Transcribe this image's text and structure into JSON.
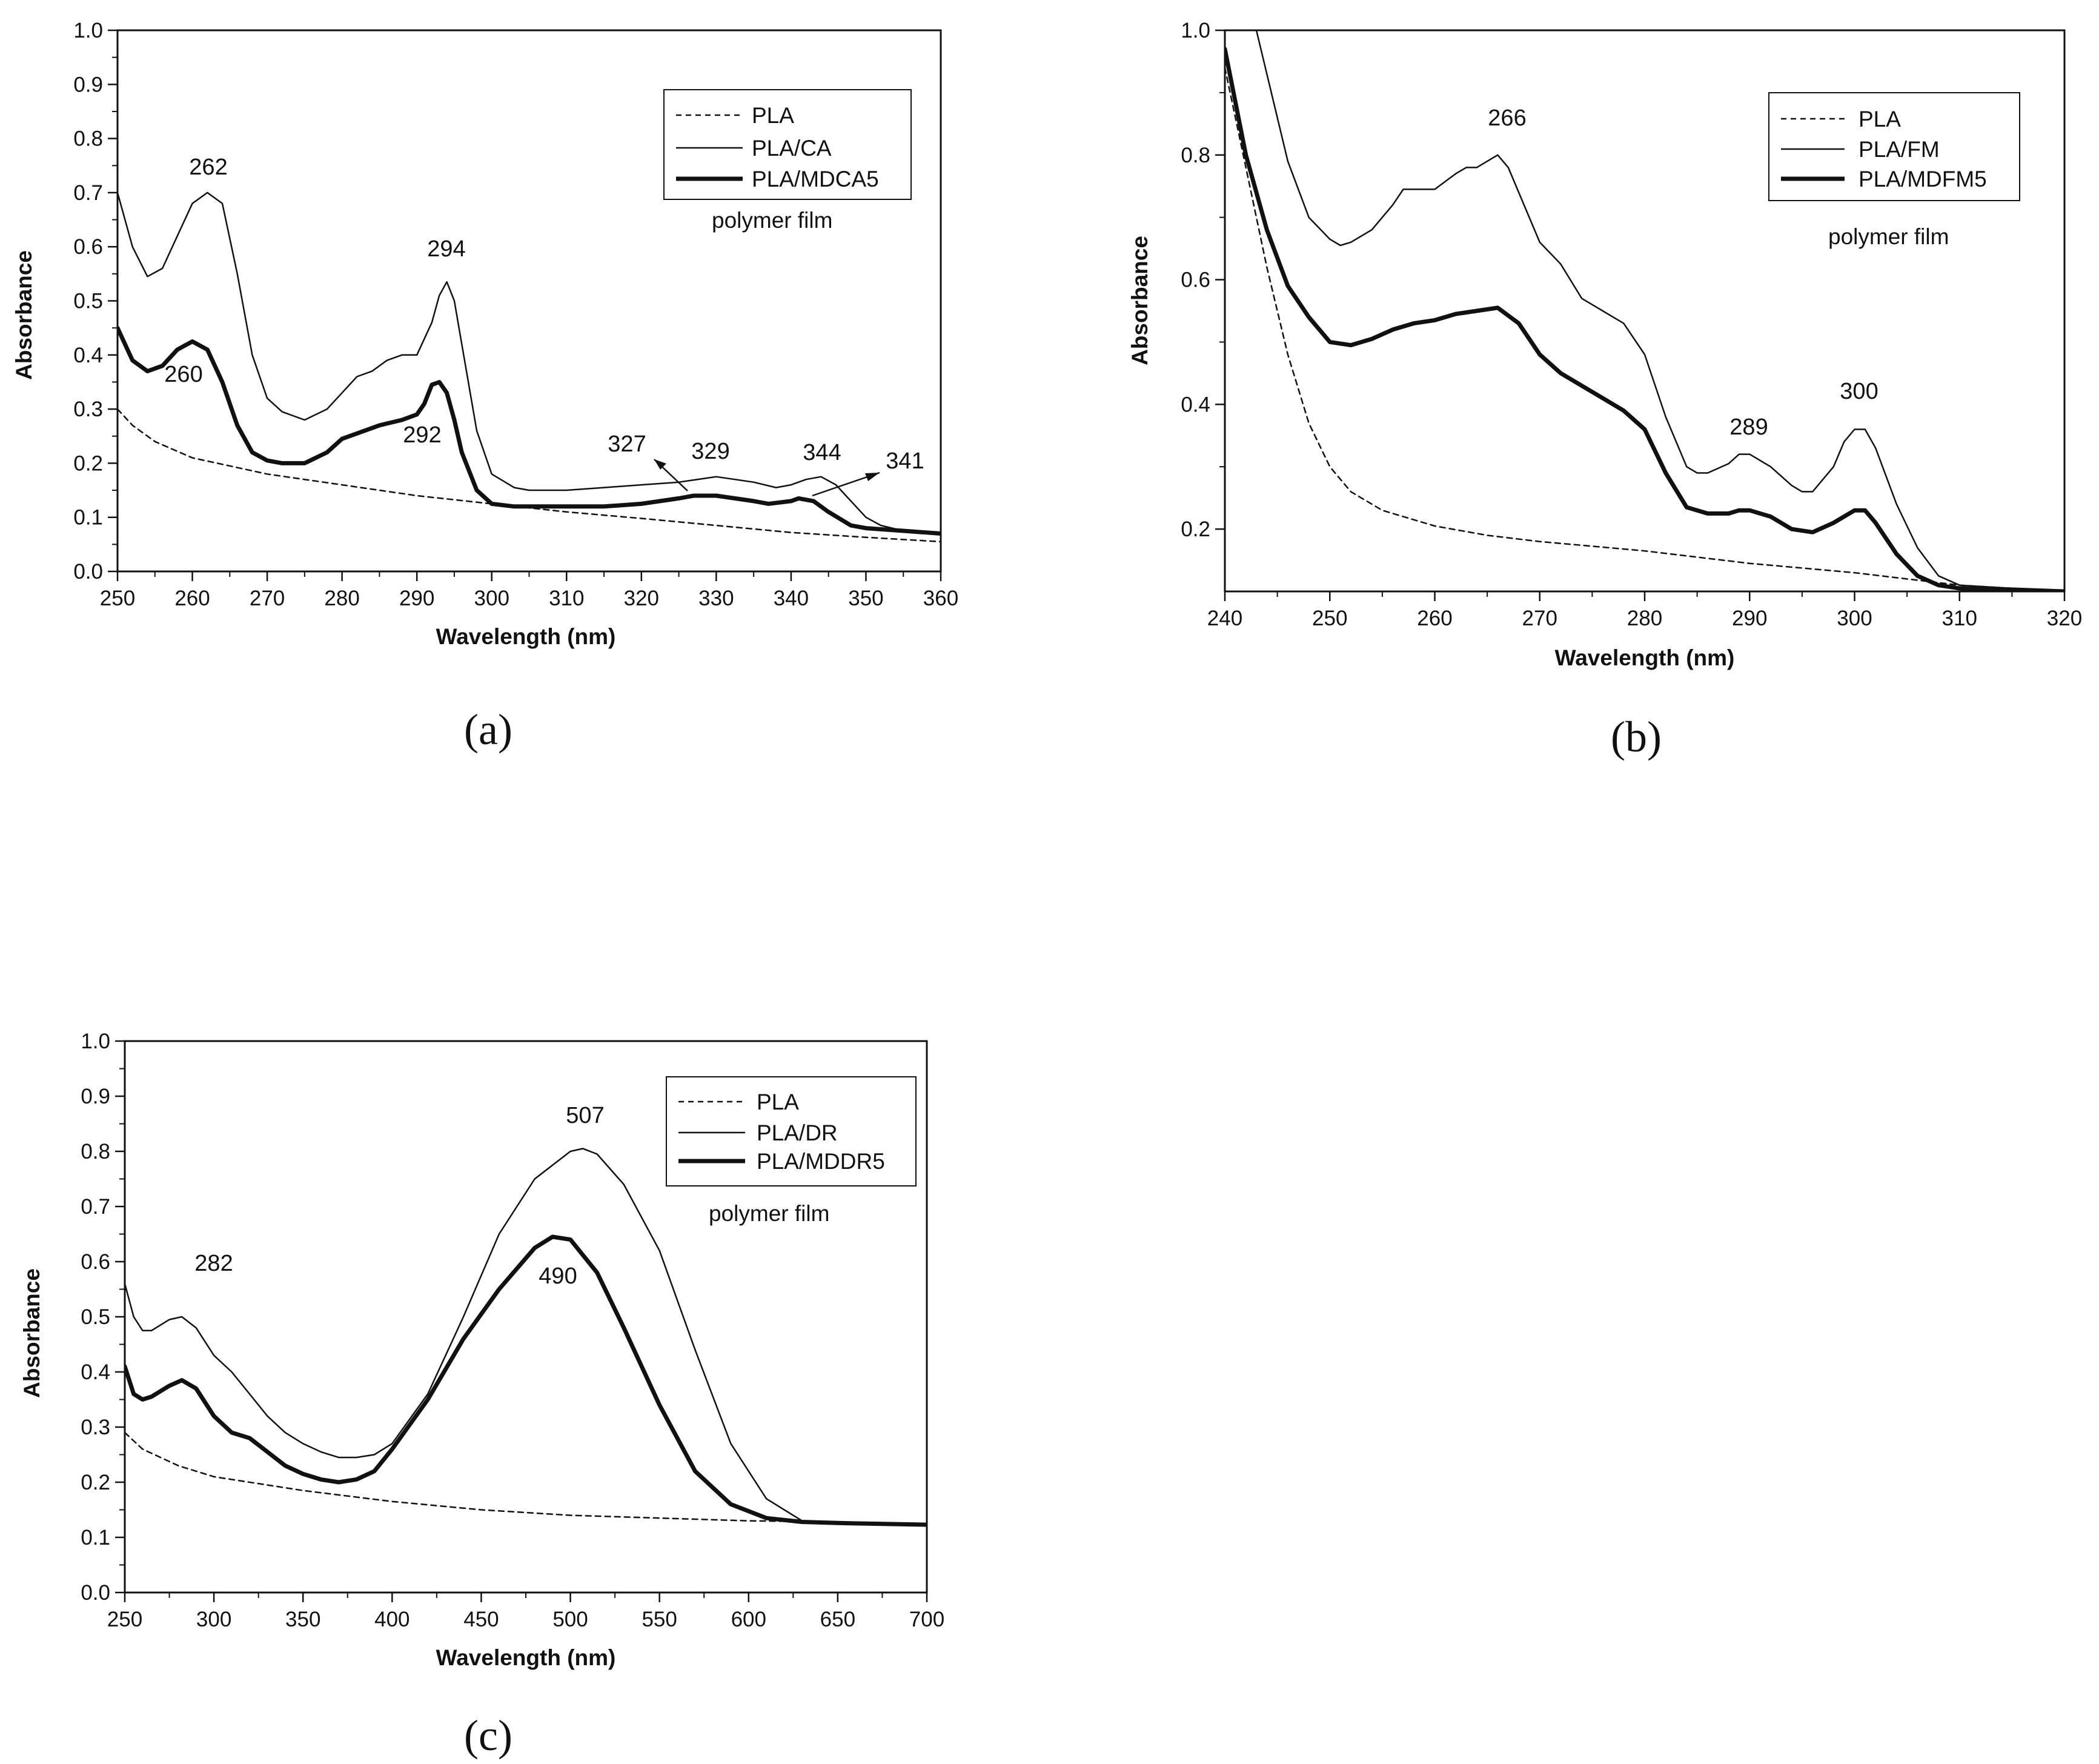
{
  "figure": {
    "panel_labels": [
      "(a)",
      "(b)",
      "(c)"
    ]
  },
  "chart_data": [
    {
      "type": "line",
      "panel": "(a)",
      "xlabel": "Wavelength (nm)",
      "ylabel": "Absorbance",
      "xlim": [
        250,
        360
      ],
      "ylim": [
        0.0,
        1.0
      ],
      "xticks": [
        250,
        260,
        270,
        280,
        290,
        300,
        310,
        320,
        330,
        340,
        350,
        360
      ],
      "yticks": [
        0.0,
        0.1,
        0.2,
        0.3,
        0.4,
        0.5,
        0.6,
        0.7,
        0.8,
        0.9,
        1.0
      ],
      "xtick_labels": [
        "250",
        "260",
        "270",
        "280",
        "290",
        "300",
        "310",
        "320",
        "330",
        "340",
        "350",
        "360"
      ],
      "ytick_labels": [
        "0.0",
        "0.1",
        "0.2",
        "0.3",
        "0.4",
        "0.5",
        "0.6",
        "0.7",
        "0.8",
        "0.9",
        "1.0"
      ],
      "legend_position": "top-right",
      "note": "polymer film",
      "series": [
        {
          "name": "PLA",
          "style": "dashed",
          "x": [
            250,
            252,
            255,
            260,
            270,
            280,
            290,
            300,
            310,
            320,
            330,
            340,
            350,
            360
          ],
          "y": [
            0.3,
            0.27,
            0.24,
            0.21,
            0.18,
            0.16,
            0.14,
            0.125,
            0.11,
            0.098,
            0.085,
            0.072,
            0.063,
            0.055
          ]
        },
        {
          "name": "PLA/CA",
          "style": "thin",
          "x": [
            250,
            252,
            254,
            256,
            258,
            260,
            262,
            264,
            266,
            268,
            270,
            272,
            275,
            278,
            280,
            282,
            284,
            286,
            288,
            290,
            292,
            293,
            294,
            295,
            296,
            298,
            300,
            303,
            305,
            310,
            315,
            320,
            325,
            330,
            335,
            338,
            340,
            342,
            344,
            346,
            348,
            350,
            352,
            355,
            360
          ],
          "y": [
            0.7,
            0.6,
            0.545,
            0.56,
            0.62,
            0.68,
            0.7,
            0.68,
            0.55,
            0.4,
            0.32,
            0.295,
            0.28,
            0.3,
            0.33,
            0.36,
            0.37,
            0.39,
            0.4,
            0.4,
            0.46,
            0.51,
            0.535,
            0.5,
            0.42,
            0.26,
            0.18,
            0.155,
            0.15,
            0.15,
            0.155,
            0.16,
            0.165,
            0.175,
            0.165,
            0.155,
            0.16,
            0.17,
            0.175,
            0.16,
            0.13,
            0.1,
            0.085,
            0.075,
            0.07
          ]
        },
        {
          "name": "PLA/MDCA5",
          "style": "thick",
          "x": [
            250,
            252,
            254,
            256,
            258,
            260,
            262,
            264,
            266,
            268,
            270,
            272,
            275,
            278,
            280,
            285,
            288,
            290,
            291,
            292,
            293,
            294,
            295,
            296,
            298,
            300,
            303,
            310,
            315,
            320,
            325,
            327,
            330,
            335,
            337,
            340,
            341,
            343,
            345,
            348,
            350,
            355,
            360
          ],
          "y": [
            0.45,
            0.39,
            0.37,
            0.38,
            0.41,
            0.425,
            0.41,
            0.35,
            0.27,
            0.22,
            0.205,
            0.2,
            0.2,
            0.22,
            0.245,
            0.27,
            0.28,
            0.29,
            0.31,
            0.345,
            0.35,
            0.33,
            0.28,
            0.22,
            0.15,
            0.125,
            0.12,
            0.12,
            0.12,
            0.125,
            0.135,
            0.14,
            0.14,
            0.13,
            0.125,
            0.13,
            0.135,
            0.13,
            0.11,
            0.085,
            0.08,
            0.075,
            0.07
          ]
        }
      ],
      "annotations": [
        "262",
        "260",
        "294",
        "292",
        "327",
        "329",
        "344",
        "341"
      ]
    },
    {
      "type": "line",
      "panel": "(b)",
      "xlabel": "Wavelength (nm)",
      "ylabel": "Absorbance",
      "xlim": [
        240,
        320
      ],
      "ylim": [
        0.1,
        1.0
      ],
      "xticks": [
        240,
        250,
        260,
        270,
        280,
        290,
        300,
        310,
        320
      ],
      "yticks": [
        0.2,
        0.4,
        0.6,
        0.8,
        1.0
      ],
      "xtick_labels": [
        "240",
        "250",
        "260",
        "270",
        "280",
        "290",
        "300",
        "310",
        "320"
      ],
      "ytick_labels": [
        "0.2",
        "0.4",
        "0.6",
        "0.8",
        "1.0"
      ],
      "legend_position": "top-right",
      "note": "polymer film",
      "series": [
        {
          "name": "PLA",
          "style": "dashed",
          "x": [
            240,
            242,
            244,
            246,
            248,
            250,
            252,
            255,
            260,
            265,
            270,
            280,
            290,
            300,
            310,
            315,
            320
          ],
          "y": [
            0.94,
            0.78,
            0.62,
            0.48,
            0.37,
            0.3,
            0.26,
            0.23,
            0.205,
            0.19,
            0.18,
            0.165,
            0.145,
            0.13,
            0.11,
            0.105,
            0.1
          ]
        },
        {
          "name": "PLA/FM",
          "style": "thin",
          "x": [
            243,
            244,
            246,
            248,
            250,
            251,
            252,
            254,
            256,
            257,
            258,
            260,
            262,
            263,
            264,
            265,
            266,
            267,
            268,
            270,
            272,
            274,
            276,
            278,
            280,
            282,
            284,
            285,
            286,
            288,
            289,
            290,
            292,
            294,
            295,
            296,
            298,
            299,
            300,
            301,
            302,
            304,
            306,
            308,
            310,
            315,
            320
          ],
          "y": [
            1.0,
            0.93,
            0.79,
            0.7,
            0.665,
            0.655,
            0.66,
            0.68,
            0.72,
            0.745,
            0.745,
            0.745,
            0.77,
            0.78,
            0.78,
            0.79,
            0.8,
            0.78,
            0.74,
            0.66,
            0.625,
            0.57,
            0.55,
            0.53,
            0.48,
            0.38,
            0.3,
            0.29,
            0.29,
            0.305,
            0.32,
            0.32,
            0.3,
            0.27,
            0.26,
            0.26,
            0.3,
            0.34,
            0.36,
            0.36,
            0.33,
            0.24,
            0.17,
            0.125,
            0.11,
            0.105,
            0.1
          ]
        },
        {
          "name": "PLA/MDFM5",
          "style": "thick",
          "x": [
            240,
            242,
            244,
            246,
            248,
            250,
            252,
            254,
            256,
            258,
            260,
            262,
            264,
            266,
            268,
            270,
            272,
            274,
            276,
            278,
            280,
            282,
            284,
            286,
            288,
            289,
            290,
            292,
            294,
            296,
            298,
            300,
            301,
            302,
            304,
            306,
            308,
            310,
            315,
            320
          ],
          "y": [
            0.97,
            0.8,
            0.68,
            0.59,
            0.54,
            0.5,
            0.495,
            0.505,
            0.52,
            0.53,
            0.535,
            0.545,
            0.55,
            0.555,
            0.53,
            0.48,
            0.45,
            0.43,
            0.41,
            0.39,
            0.36,
            0.29,
            0.235,
            0.225,
            0.225,
            0.23,
            0.23,
            0.22,
            0.2,
            0.195,
            0.21,
            0.23,
            0.23,
            0.21,
            0.16,
            0.125,
            0.11,
            0.105,
            0.103,
            0.1
          ]
        }
      ],
      "annotations": [
        "266",
        "289",
        "300"
      ]
    },
    {
      "type": "line",
      "panel": "(c)",
      "xlabel": "Wavelength (nm)",
      "ylabel": "Absorbance",
      "xlim": [
        250,
        700
      ],
      "ylim": [
        0.0,
        1.0
      ],
      "xticks": [
        250,
        300,
        350,
        400,
        450,
        500,
        550,
        600,
        650,
        700
      ],
      "yticks": [
        0.0,
        0.1,
        0.2,
        0.3,
        0.4,
        0.5,
        0.6,
        0.7,
        0.8,
        0.9,
        1.0
      ],
      "xtick_labels": [
        "250",
        "300",
        "350",
        "400",
        "450",
        "500",
        "550",
        "600",
        "650",
        "700"
      ],
      "ytick_labels": [
        "0.0",
        "0.1",
        "0.2",
        "0.3",
        "0.4",
        "0.5",
        "0.6",
        "0.7",
        "0.8",
        "0.9",
        "1.0"
      ],
      "legend_position": "top-right",
      "note": "polymer film",
      "series": [
        {
          "name": "PLA",
          "style": "dashed",
          "x": [
            250,
            260,
            280,
            300,
            350,
            400,
            450,
            500,
            550,
            600,
            650,
            700
          ],
          "y": [
            0.29,
            0.26,
            0.23,
            0.21,
            0.185,
            0.165,
            0.15,
            0.14,
            0.135,
            0.13,
            0.128,
            0.125
          ]
        },
        {
          "name": "PLA/DR",
          "style": "thin",
          "x": [
            250,
            255,
            260,
            265,
            270,
            275,
            282,
            290,
            300,
            310,
            320,
            330,
            340,
            350,
            360,
            370,
            380,
            390,
            400,
            420,
            440,
            460,
            480,
            500,
            507,
            515,
            530,
            550,
            570,
            590,
            610,
            630,
            650,
            700
          ],
          "y": [
            0.56,
            0.5,
            0.475,
            0.475,
            0.485,
            0.495,
            0.5,
            0.48,
            0.43,
            0.4,
            0.36,
            0.32,
            0.29,
            0.27,
            0.255,
            0.245,
            0.245,
            0.25,
            0.27,
            0.36,
            0.5,
            0.65,
            0.75,
            0.8,
            0.805,
            0.795,
            0.74,
            0.62,
            0.44,
            0.27,
            0.17,
            0.13,
            0.127,
            0.125
          ]
        },
        {
          "name": "PLA/MDDR5",
          "style": "thick",
          "x": [
            250,
            255,
            260,
            265,
            270,
            275,
            282,
            290,
            300,
            310,
            320,
            330,
            340,
            350,
            360,
            370,
            380,
            390,
            400,
            420,
            440,
            460,
            480,
            490,
            500,
            515,
            530,
            550,
            570,
            590,
            610,
            630,
            650,
            700
          ],
          "y": [
            0.41,
            0.36,
            0.35,
            0.355,
            0.365,
            0.375,
            0.385,
            0.37,
            0.32,
            0.29,
            0.28,
            0.255,
            0.23,
            0.215,
            0.205,
            0.2,
            0.205,
            0.22,
            0.26,
            0.35,
            0.46,
            0.55,
            0.625,
            0.645,
            0.64,
            0.58,
            0.48,
            0.34,
            0.22,
            0.16,
            0.135,
            0.128,
            0.126,
            0.123
          ]
        }
      ],
      "annotations": [
        "282",
        "507",
        "490"
      ]
    }
  ]
}
